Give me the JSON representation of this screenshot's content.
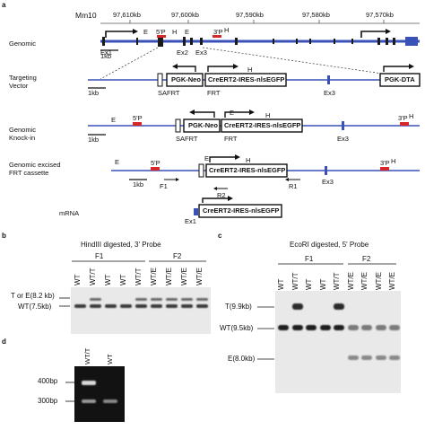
{
  "panels": {
    "a": "a",
    "b": "b",
    "c": "c",
    "d": "d"
  },
  "a": {
    "assembly": "Mm10",
    "coords": [
      "97,610kb",
      "97,600kb",
      "97,590kb",
      "97,580kb",
      "97,570kb"
    ],
    "rows": {
      "genomic": "Genomic",
      "targeting": "Targeting\nVector",
      "knockin": "Genomic\nKnock-in",
      "excised": "Genomic excised\nFRT cassette",
      "mrna": "mRNA"
    },
    "scale": "1kb",
    "labels": {
      "ex1": "Ex1",
      "ex2": "Ex2",
      "ex3": "Ex3",
      "e": "E",
      "h": "H",
      "p5": "5'P",
      "p3": "3'P",
      "pgkneo": "PGK-Neo",
      "cre": "CreERT2-IRES-nlsEGFP",
      "pgkdta": "PGK-DTA",
      "safrt": "SAFRT",
      "frt": "FRT",
      "f1": "F1",
      "r1": "R1",
      "r2": "R2"
    }
  },
  "b": {
    "title": "HindIII digested, 3' Probe",
    "groups": [
      "F1",
      "F2"
    ],
    "lanes": [
      "WT",
      "WT/T",
      "WT",
      "WT",
      "WT/T",
      "WT/E",
      "WT/E",
      "WT/E",
      "WT/E"
    ],
    "bands": [
      "T or E(8.2 kb)",
      "WT(7.5kb)"
    ]
  },
  "c": {
    "title": "EcoRI digested, 5' Probe",
    "groups": [
      "F1",
      "F2"
    ],
    "lanes": [
      "WT",
      "WT/T",
      "WT",
      "WT",
      "WT/T",
      "WT/E",
      "WT/E",
      "WT/E",
      "WT/E"
    ],
    "bands": [
      "T(9.9kb)",
      "WT(9.5kb)",
      "E(8.0kb)"
    ]
  },
  "d": {
    "lanes": [
      "WT/T",
      "WT"
    ],
    "markers": [
      "400bp",
      "300bp"
    ]
  }
}
